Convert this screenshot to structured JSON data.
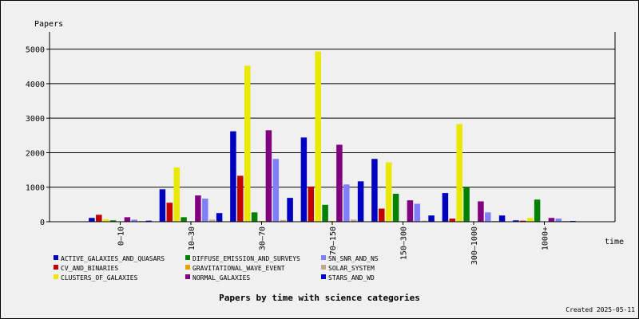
{
  "chart_data": {
    "type": "bar",
    "title": "Papers by time with science categories",
    "ylabel": "Papers",
    "xlabel": "time",
    "footer": "Created 2025-05-11",
    "ylim": [
      0,
      5500
    ],
    "yticks": [
      0,
      1000,
      2000,
      3000,
      4000,
      5000
    ],
    "grid": true,
    "legend_position": "bottom",
    "categories": [
      "0–10",
      "10–30",
      "30–70",
      "70–150",
      "150–300",
      "300–1000",
      "1000+"
    ],
    "series": [
      {
        "name": "ACTIVE_GALAXIES_AND_QUASARS",
        "color": "#0000c0",
        "values": [
          110,
          940,
          2620,
          2440,
          1820,
          830,
          40
        ]
      },
      {
        "name": "CV_AND_BINARIES",
        "color": "#c00000",
        "values": [
          200,
          550,
          1330,
          1020,
          380,
          90,
          30
        ]
      },
      {
        "name": "CLUSTERS_OF_GALAXIES",
        "color": "#e8e800",
        "values": [
          70,
          1570,
          4520,
          4930,
          1720,
          2830,
          110
        ]
      },
      {
        "name": "DIFFUSE_EMISSION_AND_SURVEYS",
        "color": "#008000",
        "values": [
          40,
          130,
          270,
          490,
          810,
          1000,
          640
        ]
      },
      {
        "name": "GRAVITATIONAL_WAVE_EVENT",
        "color": "#e8a000",
        "values": [
          0,
          0,
          10,
          10,
          0,
          0,
          0
        ]
      },
      {
        "name": "NORMAL_GALAXIES",
        "color": "#800080",
        "values": [
          130,
          760,
          2650,
          2230,
          620,
          590,
          110
        ]
      },
      {
        "name": "SN_SNR_AND_NS",
        "color": "#8080ff",
        "values": [
          60,
          670,
          1820,
          1080,
          520,
          270,
          90
        ]
      },
      {
        "name": "SOLAR_SYSTEM",
        "color": "#c0a890",
        "values": [
          10,
          60,
          50,
          60,
          30,
          10,
          10
        ]
      },
      {
        "name": "STARS_AND_WD",
        "color": "#0000c0",
        "values": [
          30,
          250,
          690,
          1170,
          180,
          180,
          20
        ]
      }
    ]
  }
}
